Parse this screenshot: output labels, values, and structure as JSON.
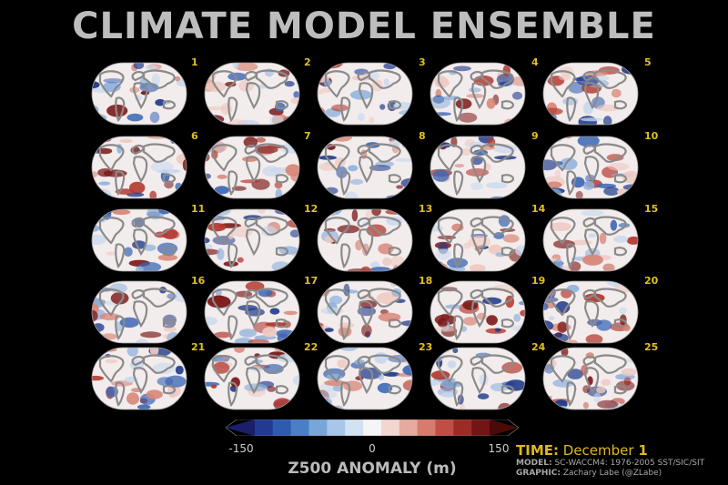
{
  "title": "CLIMATE MODEL ENSEMBLE",
  "colors": {
    "title": "#bdbdbd",
    "member_number": "#e0c020",
    "ocean_land_outline": "#8a8a8a",
    "map_background": "#f3ecec",
    "info_highlight": "#e0b820",
    "info_text": "#a8a8a8"
  },
  "members": [
    "1",
    "2",
    "3",
    "4",
    "5",
    "6",
    "7",
    "8",
    "9",
    "10",
    "11",
    "12",
    "13",
    "14",
    "15",
    "16",
    "17",
    "18",
    "19",
    "20",
    "21",
    "22",
    "23",
    "24",
    "25"
  ],
  "colorbar": {
    "min_label": "-150",
    "mid_label": "0",
    "max_label": "150",
    "label": "Z500 ANOMALY (m)",
    "range": [
      -150,
      150
    ],
    "colors": [
      "#1b1f6b",
      "#233a92",
      "#2e5bb0",
      "#4a7fc7",
      "#78a6d9",
      "#a8c7e8",
      "#d3e2f2",
      "#f5f5f5",
      "#f2d6d0",
      "#e6aaa0",
      "#d67b6e",
      "#c04e44",
      "#9c2b26",
      "#721515",
      "#4a0a0a"
    ]
  },
  "info": {
    "time_key": "TIME:",
    "time_value": "December",
    "time_day": "1",
    "model_key": "MODEL:",
    "model_value": "SC-WACCM4: 1976-2005 SST/SIC/SIT",
    "graphic_key": "GRAPHIC:",
    "graphic_value": "Zachary Labe (@ZLabe)"
  }
}
